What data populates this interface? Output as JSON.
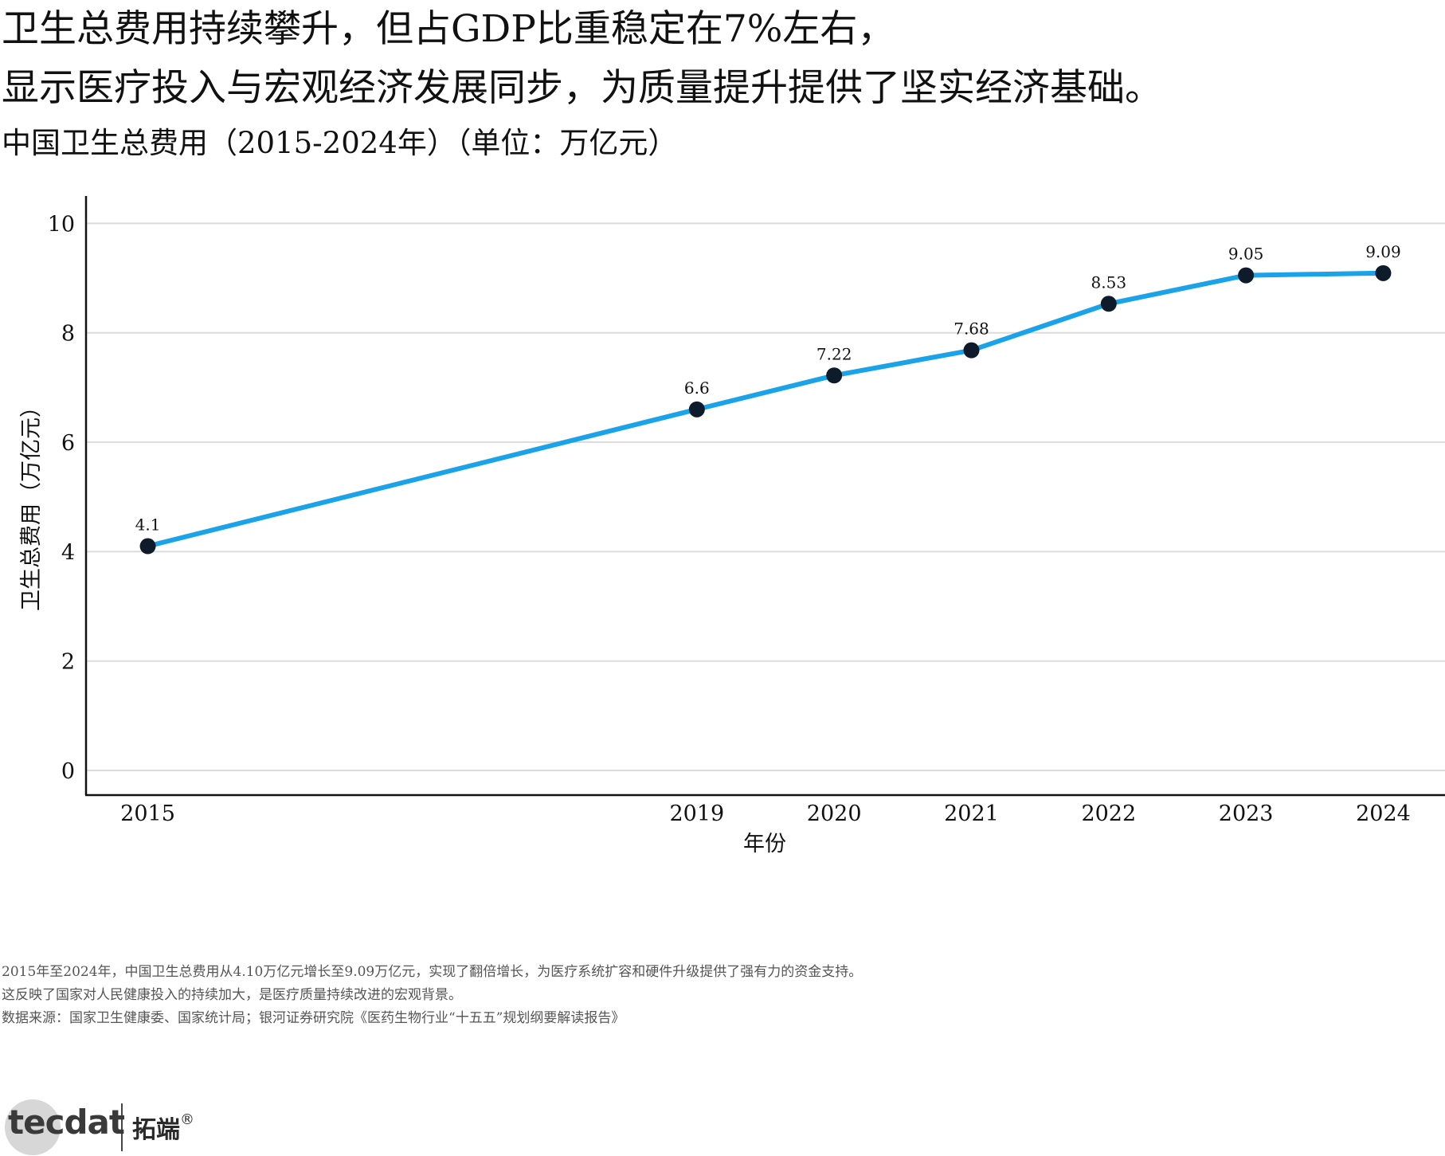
{
  "header": {
    "title_line1": "卫生总费用持续攀升，但占GDP比重稳定在7%左右，",
    "title_line2": "显示医疗投入与宏观经济发展同步，为质量提升提供了坚实经济基础。",
    "subtitle": "中国卫生总费用（2015-2024年）（单位：万亿元）"
  },
  "chart_data": {
    "type": "line",
    "x": [
      2015,
      2019,
      2020,
      2021,
      2022,
      2023,
      2024
    ],
    "series": [
      {
        "values": [
          4.1,
          6.6,
          7.22,
          7.68,
          8.53,
          9.05,
          9.09
        ]
      }
    ],
    "data_labels": [
      "4.1",
      "6.6",
      "7.22",
      "7.68",
      "8.53",
      "9.05",
      "9.09"
    ],
    "xlabel": "年份",
    "ylabel": "卫生总费用（万亿元）",
    "xticks": [
      "2015",
      "2019",
      "2020",
      "2021",
      "2022",
      "2023",
      "2024"
    ],
    "yticks": [
      "0",
      "2",
      "4",
      "6",
      "8",
      "10"
    ],
    "ylim": [
      -0.45,
      10.5
    ],
    "xlim": [
      2014.55,
      2024.45
    ],
    "grid": true,
    "line_color": "#1aa3e8",
    "marker_color": "#0d1b2a"
  },
  "notes": {
    "line1": "2015年至2024年，中国卫生总费用从4.10万亿元增长至9.09万亿元，实现了翻倍增长，为医疗系统扩容和硬件升级提供了强有力的资金支持。",
    "line2": "这反映了国家对人民健康投入的持续加大，是医疗质量持续改进的宏观背景。",
    "line3": "数据来源：国家卫生健康委、国家统计局；银河证券研究院《医药生物行业“十五五”规划纲要解读报告》"
  },
  "logo": {
    "brand": "tecdat",
    "cn": "拓端",
    "reg": "®"
  }
}
